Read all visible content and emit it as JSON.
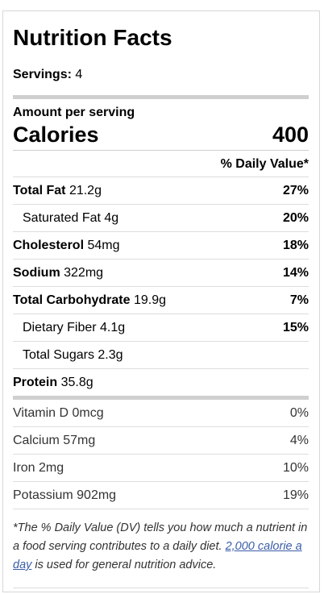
{
  "label": {
    "title": "Nutrition Facts",
    "servings_label": "Servings:",
    "servings_value": "4",
    "amount_per_serving": "Amount per serving",
    "calories_label": "Calories",
    "calories_value": "400",
    "daily_value_header": "% Daily Value*"
  },
  "nutrients": [
    {
      "name": "Total Fat",
      "amount": "21.2g",
      "pct": "27%"
    },
    {
      "name": "Saturated Fat",
      "amount": "4g",
      "pct": "20%"
    },
    {
      "name": "Cholesterol",
      "amount": "54mg",
      "pct": "18%"
    },
    {
      "name": "Sodium",
      "amount": "322mg",
      "pct": "14%"
    },
    {
      "name": "Total Carbohydrate",
      "amount": "19.9g",
      "pct": "7%"
    },
    {
      "name": "Dietary Fiber",
      "amount": "4.1g",
      "pct": "15%"
    },
    {
      "name": "Total Sugars",
      "amount": "2.3g",
      "pct": ""
    },
    {
      "name": "Protein",
      "amount": "35.8g",
      "pct": ""
    }
  ],
  "vitamins": [
    {
      "name": "Vitamin D",
      "amount": "0mcg",
      "pct": "0%"
    },
    {
      "name": "Calcium",
      "amount": "57mg",
      "pct": "4%"
    },
    {
      "name": "Iron",
      "amount": "2mg",
      "pct": "10%"
    },
    {
      "name": "Potassium",
      "amount": "902mg",
      "pct": "19%"
    }
  ],
  "footnote": {
    "part1": "*The % Daily Value (DV) tells you how much a nutrient in a food serving contributes to a daily diet. ",
    "link_text": "2,000 calorie a day",
    "part2": " is used for general nutrition advice."
  }
}
